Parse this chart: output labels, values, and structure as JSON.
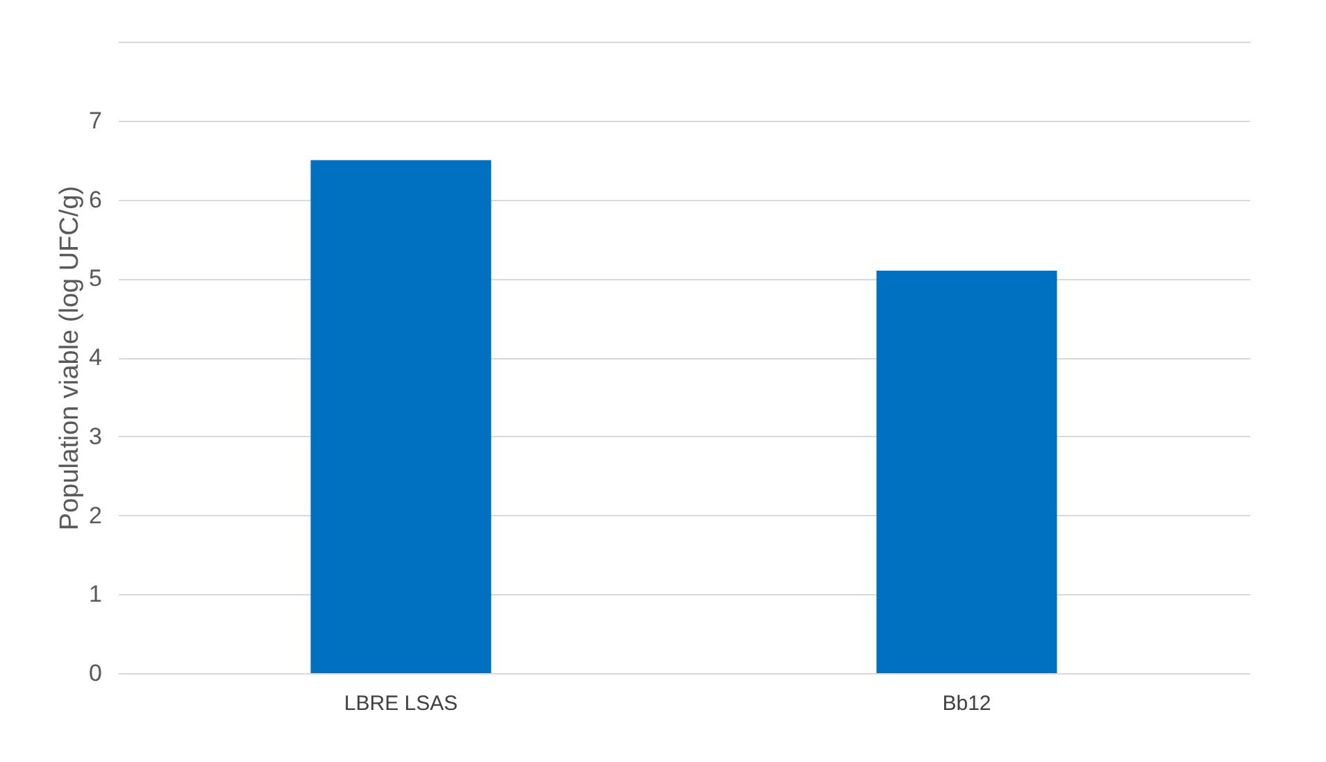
{
  "chart_data": {
    "type": "bar",
    "ylabel": "Population viable (log UFC/g)",
    "categories": [
      "LBRE LSAS",
      "Bb12"
    ],
    "values": [
      6.5,
      5.1
    ],
    "color": "#0070c0",
    "ylim": [
      0,
      8
    ],
    "yticks": [
      0,
      1,
      2,
      3,
      4,
      5,
      6,
      7,
      {
        "value": 8,
        "label": null
      }
    ],
    "grid": "y"
  }
}
